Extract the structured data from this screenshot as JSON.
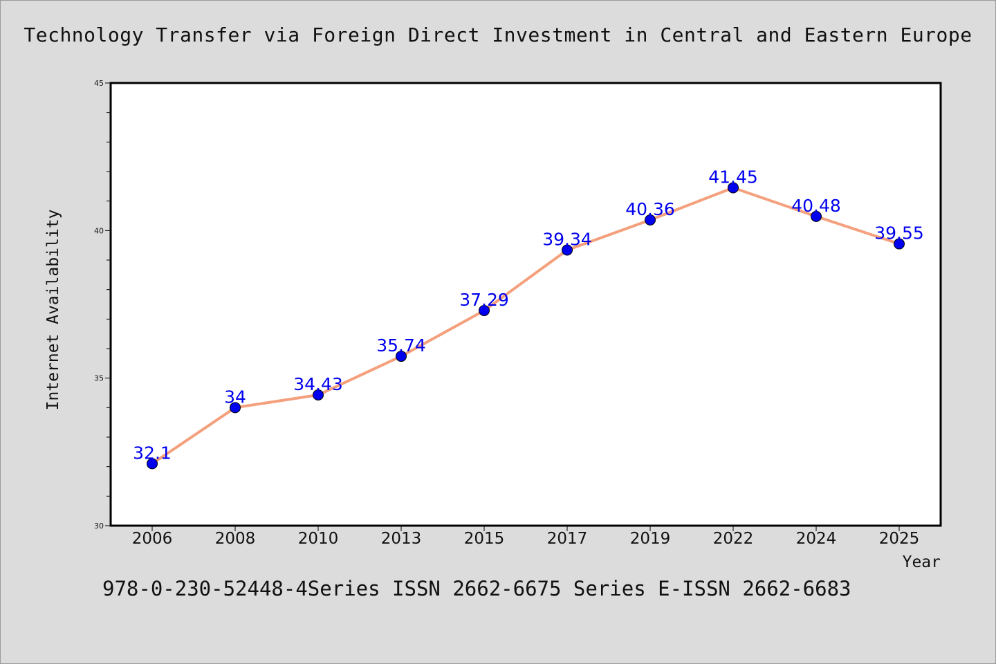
{
  "chart_data": {
    "type": "line",
    "title": "Technology Transfer via Foreign Direct Investment in Central and Eastern Europe",
    "xlabel": "Year",
    "ylabel": "Internet Availability",
    "categories": [
      "2006",
      "2008",
      "2010",
      "2013",
      "2015",
      "2017",
      "2019",
      "2022",
      "2024",
      "2025"
    ],
    "series": [
      {
        "values": [
          32.1,
          34,
          34.43,
          35.74,
          37.29,
          39.34,
          40.36,
          41.45,
          40.48,
          39.55
        ],
        "labels": [
          "32.1",
          "34",
          "34.43",
          "35.74",
          "37.29",
          "39.34",
          "40.36",
          "41.45",
          "40.48",
          "39.55"
        ]
      }
    ],
    "ylim": [
      30,
      45
    ],
    "yticks": [
      30,
      35,
      40,
      45
    ],
    "ytick_labels": [
      "30",
      "35",
      "40",
      "45"
    ],
    "grid": false,
    "line_color": "#f4a07d",
    "marker_color": "#0000ee",
    "label_color": "#0000ee"
  },
  "footer": {
    "text": "978-0-230-52448-4Series ISSN 2662-6675 Series E-ISSN 2662-6683"
  }
}
